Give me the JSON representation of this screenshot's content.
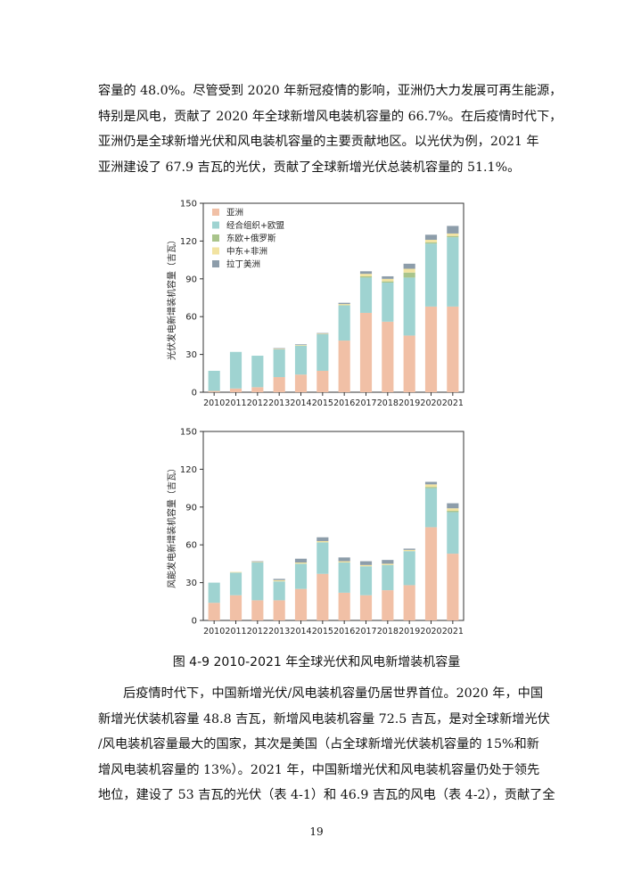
{
  "paragraph_top": [
    "容量的 48.0%。尽管受到 2020 年新冠疫情的影响，亚洲仍大力发展可再生能源，",
    "特别是风电，贡献了 2020 年全球新增风电装机容量的 66.7%。在后疫情时代下，",
    "亚洲仍是全球新增光伏和风电装机容量的主要贡献地区。以光伏为例，2021 年",
    "亚洲建设了 67.9 吉瓦的光伏，贡献了全球新增光伏总装机容量的 51.1%。"
  ],
  "caption": "图 4-9 2010-2021 年全球光伏和风电新增装机容量",
  "paragraph_bottom": [
    "后疫情时代下，中国新增光伏/风电装机容量仍居世界首位。2020 年，中国",
    "新增光伏装机容量 48.8 吉瓦，新增风电装机容量 72.5 吉瓦，是对全球新增光伏",
    "/风电装机容量最大的国家，其次是美国（占全球新增光伏装机容量的 15%和新",
    "增风电装机容量的 13%）。2021 年，中国新增光伏和风电装机容量仍处于领先",
    "地位，建设了 53 吉瓦的光伏（表 4-1）和 46.9 吉瓦的风电（表 4-2），贡献了全"
  ],
  "page_number": "19",
  "colors": {
    "asia": "#f1c0a6",
    "oecd_eu": "#9fd3d1",
    "europe_russia": "#a9c48b",
    "mideast_africa": "#f2e3a1",
    "latam": "#8d9daa"
  },
  "chart_data": [
    {
      "type": "bar",
      "stacked": true,
      "title": "",
      "xlabel": "",
      "ylabel": "光伏发电新增装机容量（吉瓦）",
      "ylim": [
        0,
        150
      ],
      "yticks": [
        0,
        30,
        60,
        90,
        120,
        150
      ],
      "legend_position": "top-left",
      "categories": [
        "2010",
        "2011",
        "2012",
        "2013",
        "2014",
        "2015",
        "2016",
        "2017",
        "2018",
        "2019",
        "2020",
        "2021"
      ],
      "series": [
        {
          "name": "亚洲",
          "color": "#f1c0a6",
          "values": [
            1,
            3,
            4,
            12,
            14,
            17,
            41,
            63,
            56,
            45,
            68,
            68
          ]
        },
        {
          "name": "经合组织+欧盟",
          "color": "#9fd3d1",
          "values": [
            16,
            29,
            25,
            22,
            23,
            29,
            28,
            28,
            31,
            46,
            50,
            55
          ]
        },
        {
          "name": "东欧+俄罗斯",
          "color": "#a9c48b",
          "values": [
            0,
            0,
            0,
            0,
            0,
            0,
            0,
            1,
            1,
            4,
            1,
            1
          ]
        },
        {
          "name": "中东+非洲",
          "color": "#f2e3a1",
          "values": [
            0,
            0,
            0,
            0.5,
            0.5,
            0.5,
            1,
            2,
            2,
            3,
            2,
            2
          ]
        },
        {
          "name": "拉丁美洲",
          "color": "#8d9daa",
          "values": [
            0,
            0,
            0,
            0.5,
            0.5,
            0.5,
            1,
            2,
            2,
            4,
            4,
            6
          ]
        }
      ]
    },
    {
      "type": "bar",
      "stacked": true,
      "title": "",
      "xlabel": "",
      "ylabel": "风能发电新增装机容量（吉瓦）",
      "ylim": [
        0,
        150
      ],
      "yticks": [
        0,
        30,
        60,
        90,
        120,
        150
      ],
      "categories": [
        "2010",
        "2011",
        "2012",
        "2013",
        "2014",
        "2015",
        "2016",
        "2017",
        "2018",
        "2019",
        "2020",
        "2021"
      ],
      "series": [
        {
          "name": "亚洲",
          "color": "#f1c0a6",
          "values": [
            14,
            20,
            16,
            16,
            25,
            37,
            22,
            20,
            24,
            28,
            74,
            53
          ]
        },
        {
          "name": "经合组织+欧盟",
          "color": "#9fd3d1",
          "values": [
            16,
            18,
            30,
            15,
            20,
            25,
            24,
            23,
            20,
            27,
            31,
            33
          ]
        },
        {
          "name": "东欧+俄罗斯",
          "color": "#a9c48b",
          "values": [
            0,
            0,
            0,
            0,
            0,
            0,
            0,
            0,
            0,
            0,
            1,
            1
          ]
        },
        {
          "name": "中东+非洲",
          "color": "#f2e3a1",
          "values": [
            0,
            0.5,
            0.5,
            1,
            1,
            1,
            1,
            1,
            1,
            1,
            2,
            2
          ]
        },
        {
          "name": "拉丁美洲",
          "color": "#8d9daa",
          "values": [
            0,
            0,
            0.5,
            1,
            3,
            3,
            3,
            3,
            3,
            1,
            2,
            4
          ]
        }
      ]
    }
  ]
}
